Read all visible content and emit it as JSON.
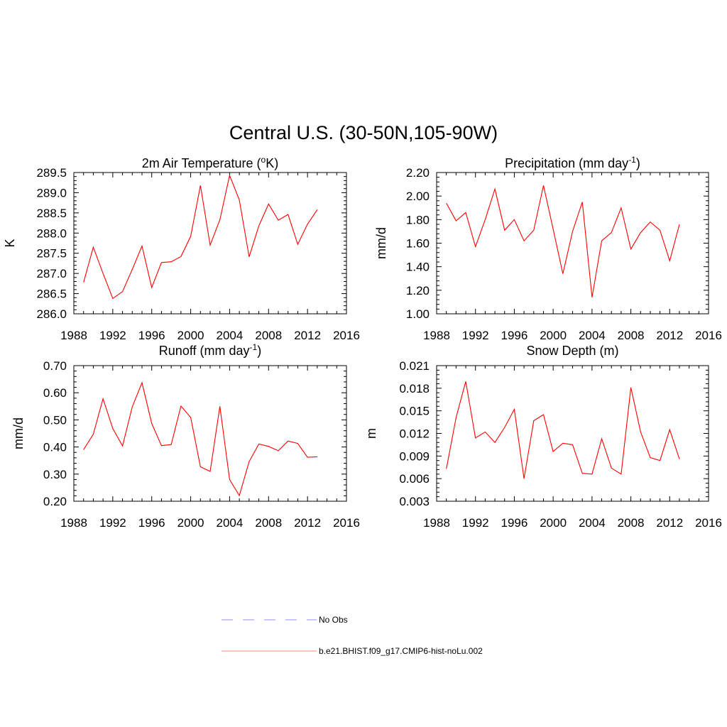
{
  "figure": {
    "title": "Central U.S. (30-50N,105-90W)"
  },
  "chart_data": [
    {
      "type": "line",
      "title": "2m Air Temperature (°K)",
      "title_parts": {
        "pre": "2m Air Temperature (",
        "sup": "o",
        "post": "K)"
      },
      "xlabel": "",
      "ylabel": "K",
      "xlim": [
        1988,
        2016
      ],
      "ylim": [
        286.0,
        289.5
      ],
      "xticks": [
        "1988",
        "1992",
        "1996",
        "2000",
        "2004",
        "2008",
        "2012",
        "2016"
      ],
      "yticks": [
        "286.0",
        "286.5",
        "287.0",
        "287.5",
        "288.0",
        "288.5",
        "289.0",
        "289.5"
      ],
      "grid": false,
      "series": [
        {
          "color": "#ff0000",
          "x": [
            1989,
            1990,
            1991,
            1992,
            1993,
            1994,
            1995,
            1996,
            1997,
            1998,
            1999,
            2000,
            2001,
            2002,
            2003,
            2004,
            2005,
            2006,
            2007,
            2008,
            2009,
            2010,
            2011,
            2012,
            2013
          ],
          "values": [
            286.78,
            287.65,
            287.0,
            286.38,
            286.55,
            287.1,
            287.68,
            286.65,
            287.27,
            287.29,
            287.42,
            287.92,
            289.18,
            287.7,
            288.33,
            289.43,
            288.82,
            287.41,
            288.18,
            288.72,
            288.32,
            288.46,
            287.72,
            288.22,
            288.58
          ]
        }
      ]
    },
    {
      "type": "line",
      "title": "Precipitation (mm day-1)",
      "title_parts": {
        "pre": "Precipitation (mm day",
        "sup": "-1",
        "post": ")"
      },
      "xlabel": "",
      "ylabel": "mm/d",
      "xlim": [
        1988,
        2016
      ],
      "ylim": [
        1.0,
        2.2
      ],
      "xticks": [
        "1988",
        "1992",
        "1996",
        "2000",
        "2004",
        "2008",
        "2012",
        "2016"
      ],
      "yticks": [
        "1.00",
        "1.20",
        "1.40",
        "1.60",
        "1.80",
        "2.00",
        "2.20"
      ],
      "grid": false,
      "series": [
        {
          "color": "#ff0000",
          "x": [
            1989,
            1990,
            1991,
            1992,
            1993,
            1994,
            1995,
            1996,
            1997,
            1998,
            1999,
            2000,
            2001,
            2002,
            2003,
            2004,
            2005,
            2006,
            2007,
            2008,
            2009,
            2010,
            2011,
            2012,
            2013
          ],
          "values": [
            1.94,
            1.79,
            1.86,
            1.57,
            1.8,
            2.06,
            1.71,
            1.8,
            1.62,
            1.71,
            2.09,
            1.72,
            1.34,
            1.7,
            1.95,
            1.14,
            1.62,
            1.69,
            1.9,
            1.55,
            1.69,
            1.78,
            1.71,
            1.45,
            1.76
          ]
        }
      ]
    },
    {
      "type": "line",
      "title": "Runoff (mm day-1)",
      "title_parts": {
        "pre": "Runoff (mm day",
        "sup": "-1",
        "post": ")"
      },
      "xlabel": "",
      "ylabel": "mm/d",
      "xlim": [
        1988,
        2016
      ],
      "ylim": [
        0.2,
        0.7
      ],
      "xticks": [
        "1988",
        "1992",
        "1996",
        "2000",
        "2004",
        "2008",
        "2012",
        "2016"
      ],
      "yticks": [
        "0.20",
        "0.30",
        "0.40",
        "0.50",
        "0.60",
        "0.70"
      ],
      "grid": false,
      "series": [
        {
          "color": "#ff0000",
          "x": [
            1989,
            1990,
            1991,
            1992,
            1993,
            1994,
            1995,
            1996,
            1997,
            1998,
            1999,
            2000,
            2001,
            2002,
            2003,
            2004,
            2005,
            2006,
            2007,
            2008,
            2009,
            2010,
            2011,
            2012,
            2013
          ],
          "values": [
            0.39,
            0.447,
            0.578,
            0.468,
            0.404,
            0.548,
            0.637,
            0.487,
            0.405,
            0.409,
            0.551,
            0.509,
            0.327,
            0.31,
            0.55,
            0.28,
            0.221,
            0.346,
            0.411,
            0.402,
            0.386,
            0.422,
            0.413,
            0.362,
            0.364
          ]
        }
      ]
    },
    {
      "type": "line",
      "title": "Snow Depth (m)",
      "title_parts": {
        "pre": "Snow Depth (m)",
        "sup": "",
        "post": ""
      },
      "xlabel": "",
      "ylabel": "m",
      "xlim": [
        1988,
        2016
      ],
      "ylim": [
        0.003,
        0.021
      ],
      "xticks": [
        "1988",
        "1992",
        "1996",
        "2000",
        "2004",
        "2008",
        "2012",
        "2016"
      ],
      "yticks": [
        "0.003",
        "0.006",
        "0.009",
        "0.012",
        "0.015",
        "0.018",
        "0.021"
      ],
      "grid": false,
      "series": [
        {
          "color": "#ff0000",
          "x": [
            1989,
            1990,
            1991,
            1992,
            1993,
            1994,
            1995,
            1996,
            1997,
            1998,
            1999,
            2000,
            2001,
            2002,
            2003,
            2004,
            2005,
            2006,
            2007,
            2008,
            2009,
            2010,
            2011,
            2012,
            2013
          ],
          "values": [
            0.0073,
            0.0141,
            0.0189,
            0.0114,
            0.0122,
            0.0108,
            0.0128,
            0.0152,
            0.006,
            0.0137,
            0.0145,
            0.0096,
            0.0107,
            0.0105,
            0.0067,
            0.0066,
            0.0113,
            0.0074,
            0.0066,
            0.0181,
            0.0122,
            0.0088,
            0.0084,
            0.0125,
            0.0086
          ]
        }
      ]
    }
  ],
  "legend": {
    "entries": [
      {
        "label": "No Obs",
        "color": "#a8a8ff",
        "style": "dashed"
      },
      {
        "label": "b.e21.BHIST.f09_g17.CMIP6-hist-noLu.002",
        "color": "#ff9d9d",
        "style": "solid"
      }
    ]
  }
}
